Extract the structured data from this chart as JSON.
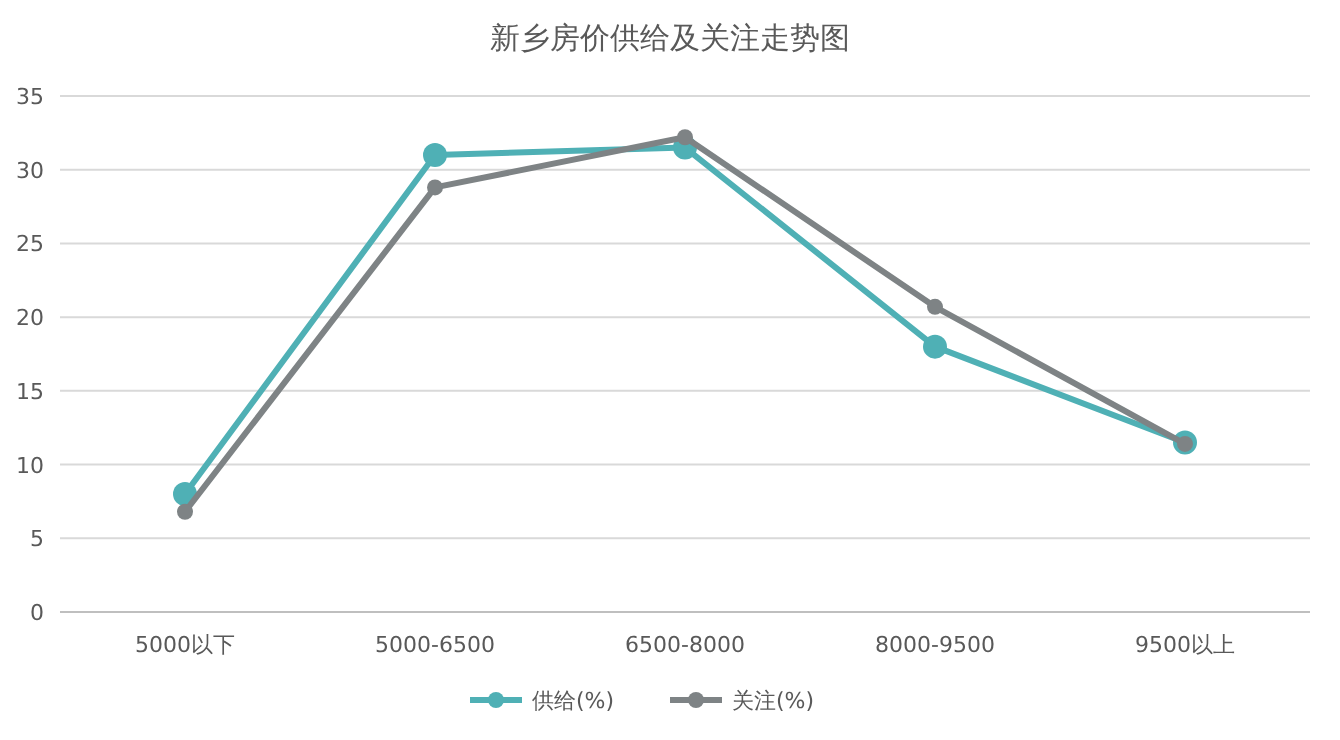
{
  "chart_data": {
    "type": "line",
    "title": "新乡房价供给及关注走势图",
    "categories": [
      "5000以下",
      "5000-6500",
      "6500-8000",
      "8000-9500",
      "9500以上"
    ],
    "series": [
      {
        "name": "供给(%)",
        "color": "#4fb0b5",
        "values": [
          8,
          31,
          31.5,
          18,
          11.5
        ]
      },
      {
        "name": "关注(%)",
        "color": "#7e8385",
        "values": [
          6.8,
          28.8,
          32.2,
          20.7,
          11.4
        ]
      }
    ],
    "ylim": [
      0,
      35
    ],
    "yticks": [
      0,
      5,
      10,
      15,
      20,
      25,
      30,
      35
    ],
    "grid": "y",
    "legend": "bottom",
    "marker": "circle",
    "line_style": "solid"
  }
}
